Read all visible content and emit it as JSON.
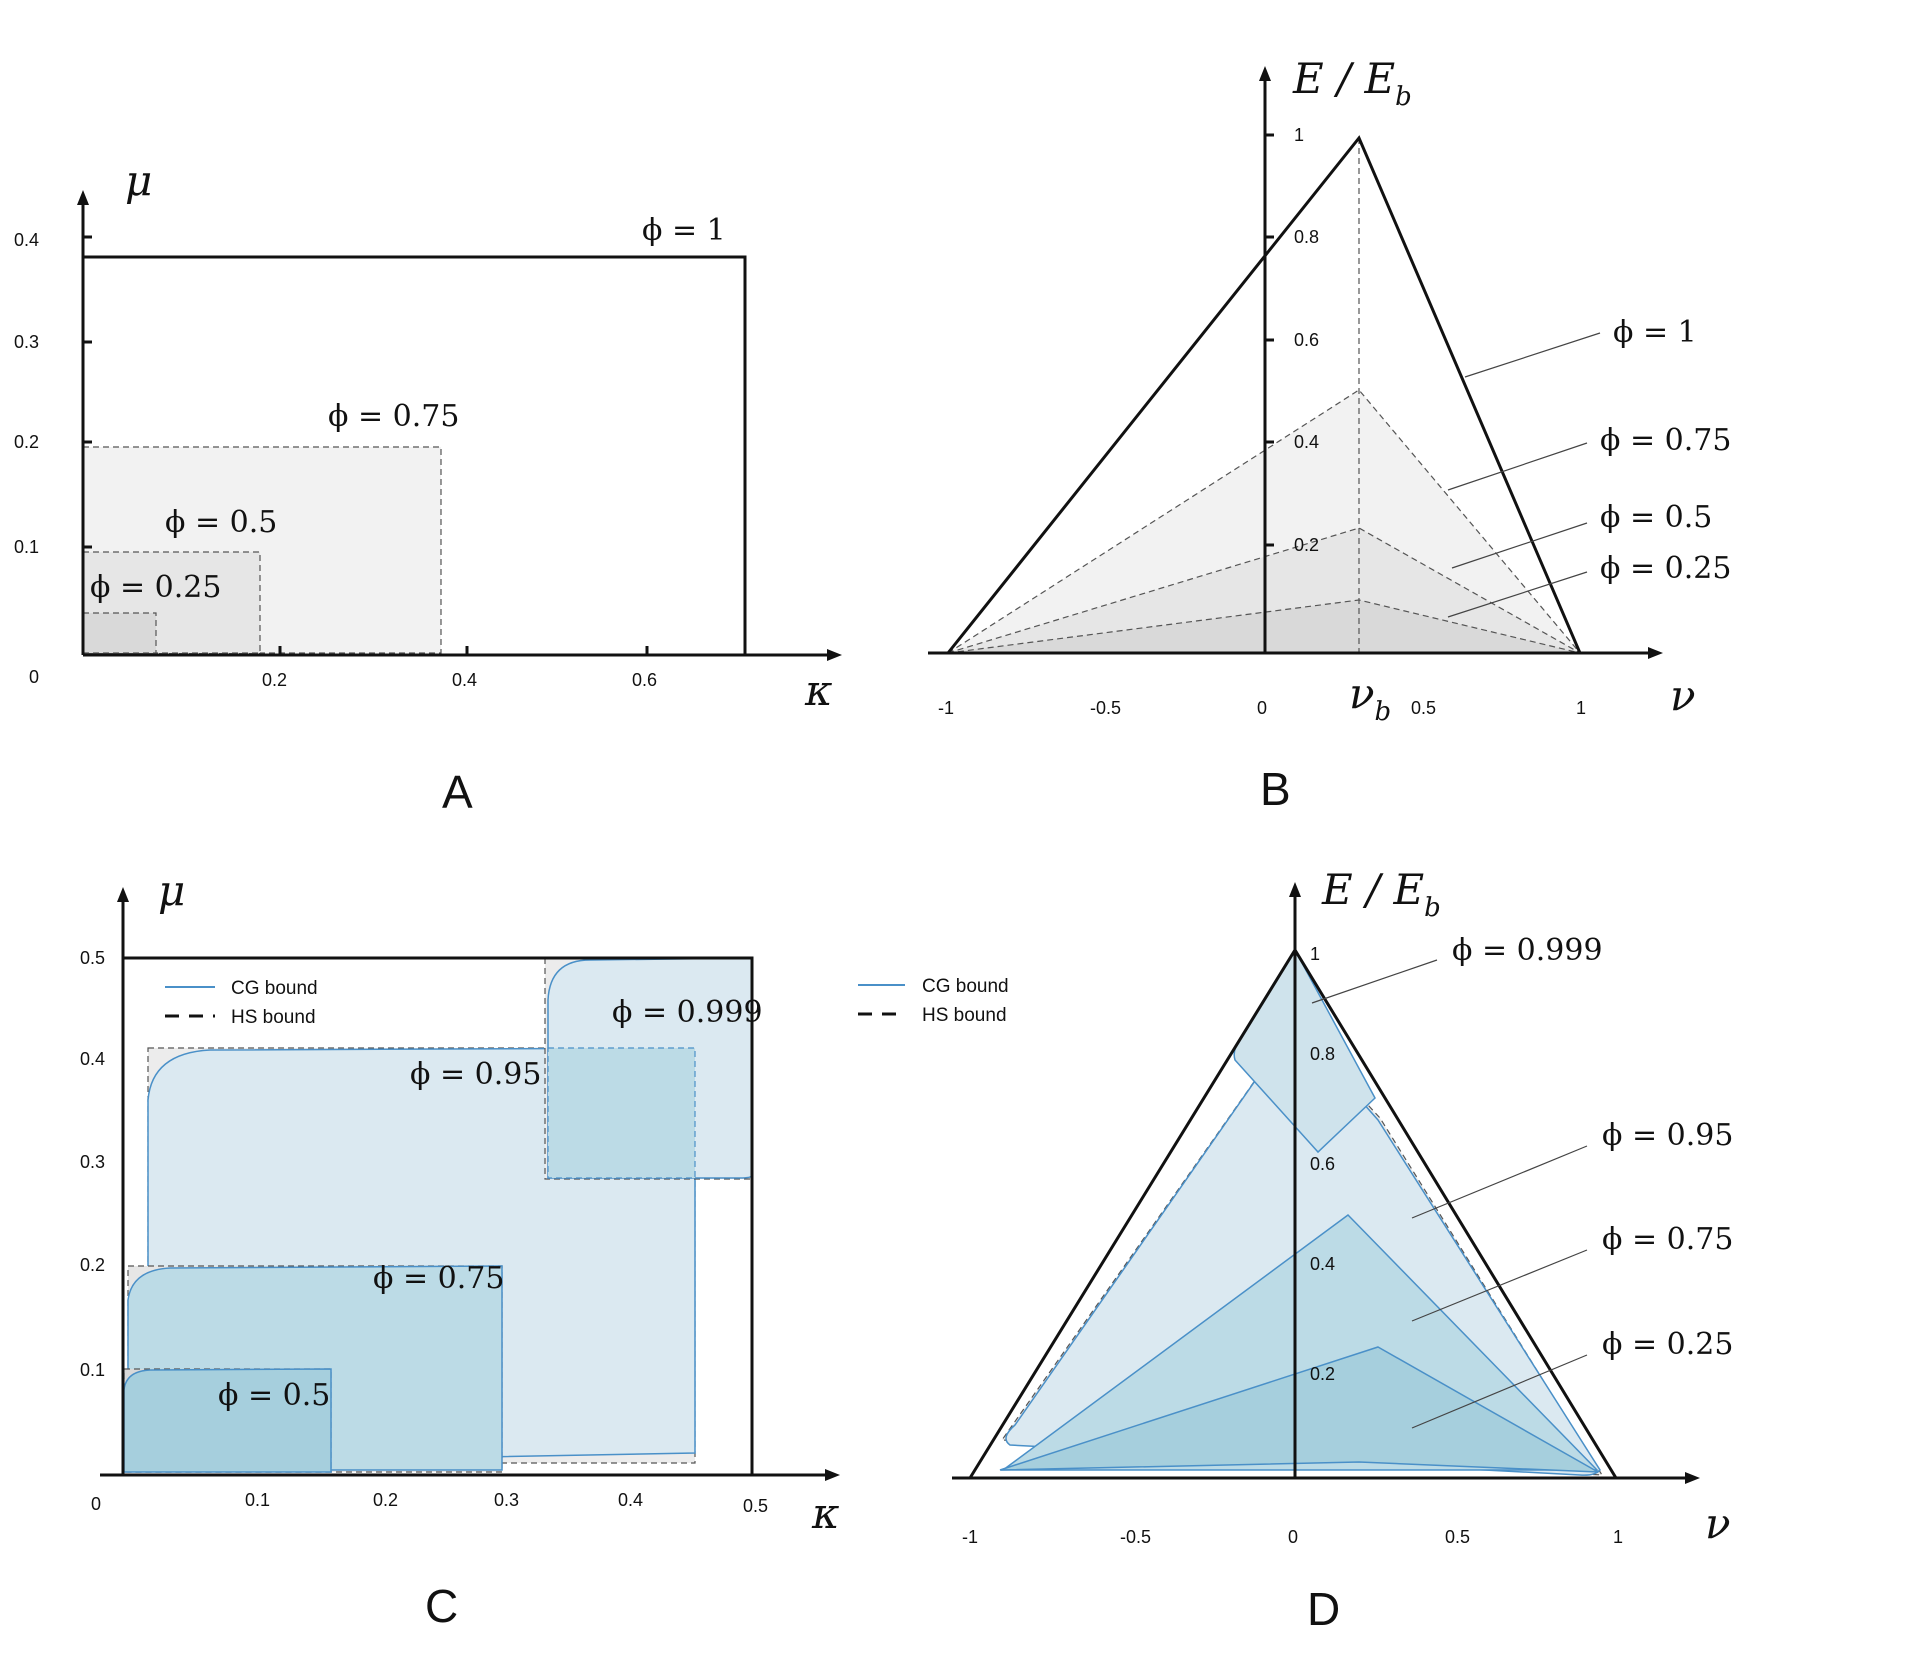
{
  "colors": {
    "axis": "#111111",
    "hs_fill_light": "#f2f2f2",
    "hs_fill_mid": "#e6e6e6",
    "hs_fill_dark": "#d9d9d9",
    "cg_line": "#4a90c8",
    "cg_fill_light": "#dbe9f1",
    "cg_fill_mid": "#bcdbe6",
    "cg_fill_dark": "#a6cfdd"
  },
  "chart_data": [
    {
      "id": "A",
      "panel_label": "A",
      "type": "area",
      "xlabel": "κ",
      "ylabel": "μ",
      "x_ticks": [
        "0.2",
        "0.4",
        "0.6"
      ],
      "y_ticks": [
        "0.1",
        "0.2",
        "0.3",
        "0.4"
      ],
      "origin_label": "0",
      "xlim": [
        0,
        0.8
      ],
      "ylim": [
        0,
        0.44
      ],
      "regions": [
        {
          "label": "ϕ = 1",
          "kappa_max": 0.7,
          "mu_max": 0.38,
          "style": "solid"
        },
        {
          "label": "ϕ = 0.75",
          "kappa_max": 0.37,
          "mu_max": 0.2,
          "style": "dashed"
        },
        {
          "label": "ϕ = 0.5",
          "kappa_max": 0.19,
          "mu_max": 0.1,
          "style": "dashed"
        },
        {
          "label": "ϕ = 0.25",
          "kappa_max": 0.08,
          "mu_max": 0.04,
          "style": "dashed"
        }
      ]
    },
    {
      "id": "B",
      "panel_label": "B",
      "type": "area",
      "xlabel": "ν",
      "ylabel": "E / E_b",
      "ylabel_main": "E / E",
      "ylabel_sub": "b",
      "vb_label": "ν",
      "vb_sub": "b",
      "vb": 0.3,
      "x_ticks": [
        "-1",
        "-0.5",
        "0",
        "0.5",
        "1"
      ],
      "y_ticks": [
        "0.2",
        "0.4",
        "0.6",
        "0.8",
        "1"
      ],
      "xlim": [
        -1,
        1.2
      ],
      "ylim": [
        0,
        1.1
      ],
      "regions": [
        {
          "label": "ϕ = 1",
          "peak": 1.0,
          "style": "solid"
        },
        {
          "label": "ϕ = 0.75",
          "peak": 0.51,
          "style": "dashed"
        },
        {
          "label": "ϕ = 0.5",
          "peak": 0.24,
          "style": "dashed"
        },
        {
          "label": "ϕ = 0.25",
          "peak": 0.1,
          "style": "dashed"
        }
      ]
    },
    {
      "id": "C",
      "panel_label": "C",
      "type": "area",
      "xlabel": "κ",
      "ylabel": "μ",
      "x_ticks": [
        "0.1",
        "0.2",
        "0.3",
        "0.4",
        "0.5"
      ],
      "y_ticks": [
        "0.1",
        "0.2",
        "0.3",
        "0.4",
        "0.5"
      ],
      "origin_label": "0",
      "xlim": [
        0,
        0.56
      ],
      "ylim": [
        0,
        0.5
      ],
      "legend": [
        {
          "label": "CG bound",
          "style": "solid-blue"
        },
        {
          "label": "HS bound",
          "style": "dashed-black"
        }
      ],
      "outer_box": {
        "kappa_max": 0.5,
        "mu_max": 0.5
      },
      "regions": [
        {
          "label": "ϕ = 0.95",
          "hs": [
            0.02,
            0.01,
            0.45,
            0.41
          ],
          "cg_low": [
            0.02,
            0.01
          ],
          "cg_high": [
            0.45,
            0.41
          ]
        },
        {
          "label": "ϕ = 0.999",
          "hs": [
            0.34,
            0.29,
            0.5,
            0.5
          ],
          "cg_low": [
            0.34,
            0.29
          ],
          "cg_high": [
            0.5,
            0.5
          ]
        },
        {
          "label": "ϕ = 0.75",
          "hs": [
            0.005,
            0.005,
            0.3,
            0.2
          ],
          "cg_low": [
            0.005,
            0.005
          ],
          "cg_high": [
            0.3,
            0.2
          ]
        },
        {
          "label": "ϕ = 0.5",
          "hs": [
            0.002,
            0.002,
            0.16,
            0.1
          ],
          "cg_low": [
            0.002,
            0.002
          ],
          "cg_high": [
            0.16,
            0.1
          ]
        }
      ]
    },
    {
      "id": "D",
      "panel_label": "D",
      "type": "area",
      "xlabel": "ν",
      "ylabel": "E / E_b",
      "ylabel_main": "E / E",
      "ylabel_sub": "b",
      "x_ticks": [
        "-1",
        "-0.5",
        "0",
        "0.5",
        "1"
      ],
      "y_ticks": [
        "0.2",
        "0.4",
        "0.6",
        "0.8",
        "1"
      ],
      "xlim": [
        -1,
        1.2
      ],
      "ylim": [
        0,
        1.05
      ],
      "legend": [
        {
          "label": "CG bound",
          "style": "solid-blue"
        },
        {
          "label": "HS bound",
          "style": "dashed-black"
        }
      ],
      "regions": [
        {
          "label": "ϕ = 0.999",
          "top": [
            0,
            1.0
          ],
          "left": [
            -0.18,
            0.8
          ],
          "bottom": [
            0.08,
            0.63
          ],
          "right": [
            0.25,
            0.74
          ]
        },
        {
          "label": "ϕ = 0.95",
          "top": [
            0,
            0.83
          ],
          "left": [
            -0.85,
            0.08
          ],
          "bottom": [
            0.2,
            0.05
          ],
          "right": [
            0.95,
            0.05
          ]
        },
        {
          "label": "ϕ = 0.75",
          "top": [
            0.17,
            0.51
          ],
          "left": [
            -0.93,
            0.03
          ],
          "bottom": [
            0.2,
            0.04
          ],
          "right": [
            0.97,
            0.01
          ]
        },
        {
          "label": "ϕ = 0.25",
          "top": [
            0.25,
            0.25
          ],
          "left": [
            -0.93,
            0.02
          ],
          "bottom": [
            0.2,
            0.01
          ],
          "right": [
            0.97,
            0.01
          ]
        }
      ]
    }
  ]
}
